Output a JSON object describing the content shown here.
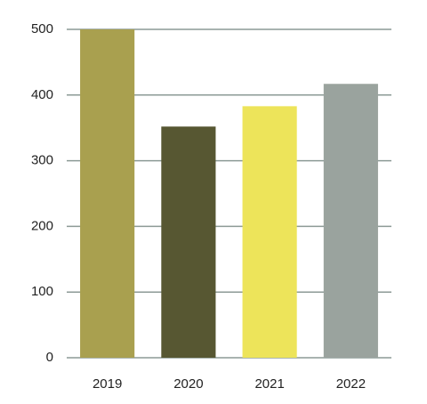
{
  "chart_data": {
    "type": "bar",
    "categories": [
      "2019",
      "2020",
      "2021",
      "2022"
    ],
    "values": [
      500,
      352,
      383,
      417
    ],
    "colors": [
      "#a9a04f",
      "#575732",
      "#ede45a",
      "#9aa39e"
    ],
    "ylim": [
      0,
      500
    ],
    "yticks": [
      0,
      100,
      200,
      300,
      400,
      500
    ],
    "grid": true
  }
}
